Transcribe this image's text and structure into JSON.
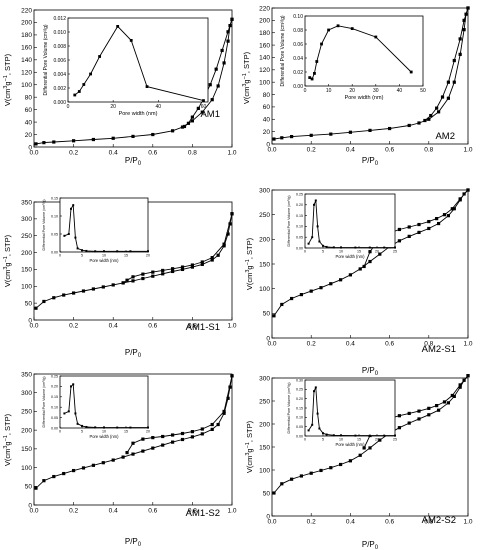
{
  "chart_data": [
    {
      "type": "line",
      "panel_label": "AM1",
      "xlabel": "P/P",
      "xlabel_sub": "0",
      "ylabel": "V(cm",
      "ylabel_sup": "3",
      "ylabel_mid": "g",
      "ylabel_sup2": "−1",
      "ylabel_tail": ", STP)",
      "xlim": [
        0,
        1.0
      ],
      "ylim": [
        0,
        220
      ],
      "xticks": [
        "0.0",
        "0.2",
        "0.4",
        "0.6",
        "0.8",
        "1.0"
      ],
      "yticks": [
        "0",
        "20",
        "40",
        "60",
        "80",
        "100",
        "120",
        "140",
        "160",
        "180",
        "200",
        "220"
      ],
      "series": [
        {
          "x": [
            0.01,
            0.05,
            0.1,
            0.2,
            0.3,
            0.4,
            0.5,
            0.6,
            0.7,
            0.75,
            0.8,
            0.85,
            0.9,
            0.93,
            0.96,
            0.98,
            0.99,
            1.0
          ],
          "y": [
            5,
            7,
            8,
            10,
            12,
            14,
            17,
            20,
            26,
            32,
            42,
            56,
            76,
            98,
            135,
            170,
            195,
            205
          ]
        },
        {
          "x": [
            1.0,
            0.98,
            0.95,
            0.92,
            0.89,
            0.86,
            0.83,
            0.8,
            0.78,
            0.76
          ],
          "y": [
            205,
            185,
            155,
            125,
            100,
            80,
            62,
            48,
            38,
            33
          ]
        }
      ],
      "inset": {
        "xlabel": "Pore width (nm)",
        "ylabel": "Differential Pore Volume (cm³/g)",
        "xlim": [
          0,
          62
        ],
        "ylim": [
          0,
          0.012
        ],
        "xticks": [
          "0",
          "20",
          "40",
          "60"
        ],
        "yticks": [
          "0.000",
          "0.002",
          "0.004",
          "0.006",
          "0.008",
          "0.010",
          "0.012"
        ],
        "x": [
          3,
          5,
          7,
          10,
          14,
          22,
          28,
          35,
          60
        ],
        "y": [
          0.001,
          0.0015,
          0.0025,
          0.004,
          0.0065,
          0.0108,
          0.0088,
          0.0022,
          0.0002
        ]
      }
    },
    {
      "type": "line",
      "panel_label": "AM2",
      "xlabel": "P/P",
      "xlabel_sub": "0",
      "ylabel": "V(cm",
      "ylabel_sup": "3",
      "ylabel_mid": "g",
      "ylabel_sup2": "−1",
      "ylabel_tail": ", STP)",
      "xlim": [
        0,
        1.0
      ],
      "ylim": [
        0,
        220
      ],
      "xticks": [
        "0.0",
        "0.2",
        "0.4",
        "0.6",
        "0.8",
        "1.0"
      ],
      "yticks": [
        "0",
        "20",
        "40",
        "60",
        "80",
        "100",
        "120",
        "140",
        "160",
        "180",
        "200",
        "220"
      ],
      "series": [
        {
          "x": [
            0.01,
            0.05,
            0.1,
            0.2,
            0.3,
            0.4,
            0.5,
            0.6,
            0.7,
            0.75,
            0.8,
            0.85,
            0.9,
            0.93,
            0.96,
            0.98,
            0.99,
            1.0
          ],
          "y": [
            8,
            10,
            12,
            14,
            16,
            19,
            22,
            25,
            30,
            34,
            40,
            52,
            74,
            100,
            145,
            185,
            210,
            220
          ]
        },
        {
          "x": [
            1.0,
            0.98,
            0.96,
            0.93,
            0.9,
            0.87,
            0.84,
            0.81,
            0.78
          ],
          "y": [
            220,
            200,
            170,
            135,
            100,
            76,
            58,
            46,
            38
          ]
        }
      ],
      "inset": {
        "xlabel": "Pore width (nm)",
        "ylabel": "Differential Pore Volume (cm³/g)",
        "xlim": [
          0,
          50
        ],
        "ylim": [
          0,
          0.1
        ],
        "xticks": [
          "0",
          "10",
          "20",
          "30",
          "40",
          "50"
        ],
        "yticks": [
          "0.00",
          "0.02",
          "0.04",
          "0.06",
          "0.08",
          "0.10"
        ],
        "x": [
          2,
          3,
          4,
          5,
          7,
          10,
          14,
          20,
          30,
          45
        ],
        "y": [
          0.012,
          0.01,
          0.018,
          0.035,
          0.06,
          0.08,
          0.086,
          0.082,
          0.07,
          0.02
        ]
      }
    },
    {
      "type": "line",
      "panel_label": "AM1-S1",
      "xlabel": "P/P",
      "xlabel_sub": "0",
      "ylabel": "V(cm",
      "ylabel_sup": "3",
      "ylabel_mid": "g",
      "ylabel_sup2": "−1",
      "ylabel_tail": ", STP)",
      "xlim": [
        0,
        1.0
      ],
      "ylim": [
        0,
        350
      ],
      "xticks": [
        "0.0",
        "0.2",
        "0.4",
        "0.6",
        "0.8",
        "1.0"
      ],
      "yticks": [
        "0",
        "50",
        "100",
        "150",
        "200",
        "250",
        "300",
        "350"
      ],
      "series": [
        {
          "x": [
            0.01,
            0.05,
            0.1,
            0.15,
            0.2,
            0.25,
            0.3,
            0.35,
            0.4,
            0.45,
            0.5,
            0.55,
            0.6,
            0.65,
            0.7,
            0.75,
            0.8,
            0.85,
            0.9,
            0.93,
            0.96,
            0.98,
            0.99,
            1.0
          ],
          "y": [
            35,
            55,
            66,
            74,
            80,
            86,
            92,
            98,
            104,
            110,
            116,
            123,
            130,
            137,
            144,
            150,
            157,
            165,
            178,
            192,
            220,
            255,
            285,
            315
          ]
        },
        {
          "x": [
            1.0,
            0.96,
            0.9,
            0.85,
            0.8,
            0.75,
            0.7,
            0.65,
            0.6,
            0.55,
            0.5,
            0.47,
            0.45
          ],
          "y": [
            315,
            225,
            185,
            172,
            163,
            157,
            152,
            147,
            142,
            136,
            128,
            118,
            110
          ]
        }
      ],
      "inset": {
        "xlabel": "Pore width (nm)",
        "ylabel": "Differential Pore Volume (cm³/g)",
        "xlim": [
          0,
          20
        ],
        "ylim": [
          0,
          0.15
        ],
        "xticks": [
          "0",
          "5",
          "10",
          "15",
          "20"
        ],
        "yticks": [
          "0.00",
          "0.05",
          "0.10",
          "0.15"
        ],
        "x": [
          1,
          2,
          2.5,
          3,
          3.5,
          4,
          5,
          6,
          8,
          10,
          13,
          16,
          20
        ],
        "y": [
          0.045,
          0.05,
          0.12,
          0.13,
          0.04,
          0.01,
          0.005,
          0.003,
          0.002,
          0.002,
          0.002,
          0.002,
          0.002
        ]
      }
    },
    {
      "type": "line",
      "panel_label": "AM2-S1",
      "xlabel": "P/P",
      "xlabel_sub": "0",
      "ylabel": "V(cm",
      "ylabel_sup": "3",
      "ylabel_mid": "g",
      "ylabel_sup2": "−1",
      "ylabel_tail": ", STP)",
      "xlim": [
        0,
        1.0
      ],
      "ylim": [
        0,
        300
      ],
      "xticks": [
        "0.0",
        "0.2",
        "0.4",
        "0.6",
        "0.8",
        "1.0"
      ],
      "yticks": [
        "0",
        "50",
        "100",
        "150",
        "200",
        "250",
        "300"
      ],
      "series": [
        {
          "x": [
            0.01,
            0.05,
            0.1,
            0.15,
            0.2,
            0.25,
            0.3,
            0.35,
            0.4,
            0.45,
            0.5,
            0.55,
            0.6,
            0.65,
            0.7,
            0.75,
            0.8,
            0.85,
            0.9,
            0.93,
            0.96,
            0.98,
            1.0
          ],
          "y": [
            45,
            68,
            80,
            88,
            95,
            102,
            110,
            118,
            128,
            140,
            155,
            170,
            185,
            197,
            206,
            214,
            222,
            232,
            248,
            262,
            280,
            292,
            300
          ]
        },
        {
          "x": [
            1.0,
            0.96,
            0.92,
            0.88,
            0.84,
            0.8,
            0.75,
            0.7,
            0.65,
            0.6,
            0.55,
            0.5,
            0.47
          ],
          "y": [
            300,
            282,
            262,
            250,
            242,
            236,
            230,
            225,
            220,
            213,
            203,
            175,
            145
          ]
        }
      ],
      "inset": {
        "xlabel": "Pore width (nm)",
        "ylabel": "Differential Pore Volume (cm³/g)",
        "xlim": [
          0,
          25
        ],
        "ylim": [
          0,
          0.25
        ],
        "xticks": [
          "0",
          "5",
          "10",
          "15",
          "20",
          "25"
        ],
        "yticks": [
          "0.00",
          "0.05",
          "0.10",
          "0.15",
          "0.20",
          "0.25"
        ],
        "x": [
          1,
          2,
          2.5,
          3,
          3.5,
          4,
          5,
          6,
          8,
          10,
          14,
          18,
          22,
          25
        ],
        "y": [
          0.02,
          0.05,
          0.2,
          0.22,
          0.1,
          0.03,
          0.01,
          0.005,
          0.003,
          0.002,
          0.002,
          0.002,
          0.002,
          0.002
        ]
      }
    },
    {
      "type": "line",
      "panel_label": "AM1-S2",
      "xlabel": "P/P",
      "xlabel_sub": "0",
      "ylabel": "V(cm",
      "ylabel_sup": "3",
      "ylabel_mid": "g",
      "ylabel_sup2": "−1",
      "ylabel_tail": ", STP)",
      "xlim": [
        0,
        1.0
      ],
      "ylim": [
        0,
        350
      ],
      "xticks": [
        "0.0",
        "0.2",
        "0.4",
        "0.6",
        "0.8",
        "1.0"
      ],
      "yticks": [
        "0",
        "50",
        "100",
        "150",
        "200",
        "250",
        "300",
        "350"
      ],
      "series": [
        {
          "x": [
            0.01,
            0.05,
            0.1,
            0.15,
            0.2,
            0.25,
            0.3,
            0.35,
            0.4,
            0.45,
            0.5,
            0.55,
            0.6,
            0.65,
            0.7,
            0.75,
            0.8,
            0.85,
            0.9,
            0.93,
            0.96,
            0.98,
            0.99,
            1.0
          ],
          "y": [
            45,
            65,
            76,
            84,
            92,
            99,
            106,
            113,
            120,
            128,
            136,
            144,
            152,
            160,
            168,
            175,
            182,
            190,
            202,
            215,
            245,
            285,
            315,
            345
          ]
        },
        {
          "x": [
            1.0,
            0.96,
            0.9,
            0.85,
            0.8,
            0.75,
            0.7,
            0.65,
            0.6,
            0.55,
            0.5,
            0.47
          ],
          "y": [
            345,
            250,
            215,
            203,
            196,
            191,
            187,
            183,
            180,
            176,
            165,
            140
          ]
        }
      ],
      "inset": {
        "xlabel": "Pore width (nm)",
        "ylabel": "Differential Pore Volume (cm³/g)",
        "xlim": [
          0,
          20
        ],
        "ylim": [
          0,
          0.25
        ],
        "xticks": [
          "0",
          "5",
          "10",
          "15",
          "20"
        ],
        "yticks": [
          "0.00",
          "0.05",
          "0.10",
          "0.15",
          "0.20",
          "0.25"
        ],
        "x": [
          1,
          2,
          2.5,
          3,
          3.5,
          4,
          5,
          6,
          8,
          10,
          13,
          16,
          20
        ],
        "y": [
          0.07,
          0.08,
          0.2,
          0.21,
          0.07,
          0.02,
          0.01,
          0.005,
          0.003,
          0.002,
          0.002,
          0.002,
          0.002
        ]
      }
    },
    {
      "type": "line",
      "panel_label": "AM2-S2",
      "xlabel": "P/P",
      "xlabel_sub": "0",
      "ylabel": "V(cm",
      "ylabel_sup": "3",
      "ylabel_mid": "g",
      "ylabel_sup2": "−1",
      "ylabel_tail": ", STP)",
      "xlim": [
        0,
        1.0
      ],
      "ylim": [
        0,
        300
      ],
      "xticks": [
        "0.0",
        "0.2",
        "0.4",
        "0.6",
        "0.8",
        "1.0"
      ],
      "yticks": [
        "0",
        "50",
        "100",
        "150",
        "200",
        "250",
        "300"
      ],
      "series": [
        {
          "x": [
            0.01,
            0.05,
            0.1,
            0.15,
            0.2,
            0.25,
            0.3,
            0.35,
            0.4,
            0.45,
            0.5,
            0.55,
            0.6,
            0.65,
            0.7,
            0.75,
            0.8,
            0.85,
            0.9,
            0.93,
            0.96,
            0.98,
            1.0
          ],
          "y": [
            50,
            70,
            80,
            87,
            93,
            99,
            105,
            112,
            120,
            132,
            148,
            165,
            180,
            192,
            202,
            211,
            220,
            230,
            246,
            260,
            280,
            295,
            305
          ]
        },
        {
          "x": [
            1.0,
            0.96,
            0.92,
            0.88,
            0.84,
            0.8,
            0.75,
            0.7,
            0.65,
            0.6,
            0.55,
            0.5,
            0.47
          ],
          "y": [
            305,
            285,
            262,
            248,
            240,
            234,
            228,
            223,
            218,
            212,
            200,
            175,
            148
          ]
        }
      ],
      "inset": {
        "xlabel": "Pore width (nm)",
        "ylabel": "Differential Pore Volume (cm³/g)",
        "xlim": [
          0,
          25
        ],
        "ylim": [
          0,
          0.3
        ],
        "xticks": [
          "0",
          "5",
          "10",
          "15",
          "20",
          "25"
        ],
        "yticks": [
          "0.00",
          "0.05",
          "0.10",
          "0.15",
          "0.20",
          "0.25",
          "0.30"
        ],
        "x": [
          1,
          2,
          2.5,
          3,
          3.5,
          4,
          5,
          6,
          8,
          10,
          14,
          18,
          22,
          25
        ],
        "y": [
          0.03,
          0.06,
          0.24,
          0.26,
          0.12,
          0.04,
          0.015,
          0.008,
          0.004,
          0.003,
          0.002,
          0.002,
          0.002,
          0.002
        ]
      }
    }
  ]
}
